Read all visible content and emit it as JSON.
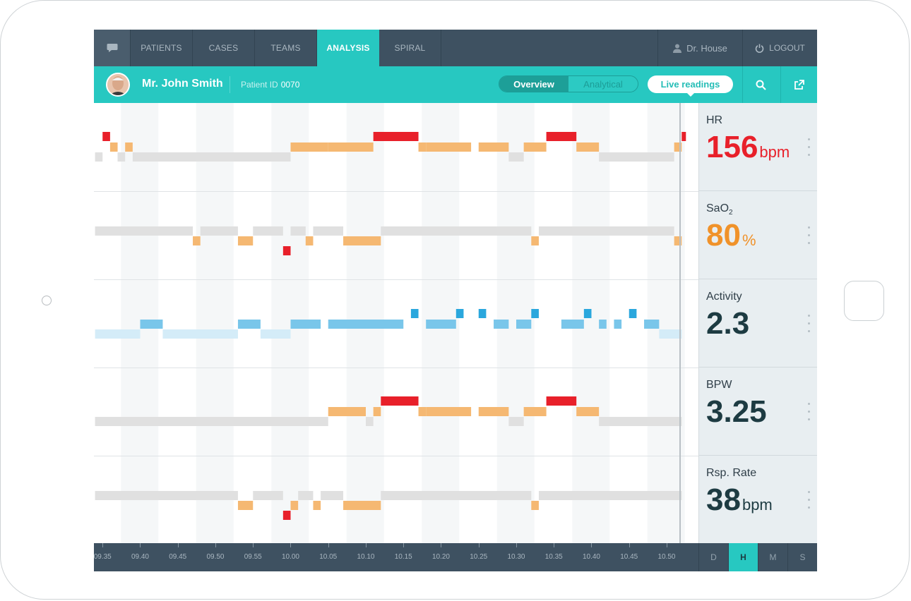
{
  "nav": {
    "items": [
      {
        "label": "PATIENTS"
      },
      {
        "label": "CASES"
      },
      {
        "label": "TEAMS"
      },
      {
        "label": "ANALYSIS",
        "active": true
      },
      {
        "label": "SPIRAL"
      }
    ],
    "user_label": "Dr. House",
    "logout_label": "LOGOUT"
  },
  "patient": {
    "name": "Mr. John Smith",
    "id_label": "Patient ID",
    "id_value": "0070"
  },
  "view_toggle": {
    "options": [
      "Overview",
      "Analytical"
    ],
    "selected": "Overview"
  },
  "live_button": "Live readings",
  "readouts": [
    {
      "label": "HR",
      "value": "156",
      "unit": "bpm",
      "color": "#e8202a"
    },
    {
      "label": "SaO",
      "sub": "2",
      "value": "80",
      "unit": "%",
      "color": "#f0922a"
    },
    {
      "label": "Activity",
      "value": "2.3",
      "unit": "",
      "color": "#1d3b42"
    },
    {
      "label": "BPW",
      "value": "3.25",
      "unit": "",
      "color": "#1d3b42"
    },
    {
      "label": "Rsp. Rate",
      "value": "38",
      "unit": "bpm",
      "color": "#1d3b42"
    }
  ],
  "time_ticks": [
    "09.35",
    "09.40",
    "09.45",
    "09.50",
    "09.55",
    "10.00",
    "10.05",
    "10.10",
    "10.15",
    "10.20",
    "10.25",
    "10.30",
    "10.35",
    "10.40",
    "10.45",
    "10.50"
  ],
  "zoom": {
    "options": [
      "D",
      "H",
      "M",
      "S"
    ],
    "selected": "H"
  },
  "colors": {
    "nav_bg": "#3e5161",
    "accent": "#27c8c1",
    "critical": "#e8202a",
    "warning": "#f5b872",
    "normal": "#e0e0e0",
    "activity_strong": "#2aa7dd",
    "activity_mid": "#79c6ea",
    "activity_light": "#d4ecf8"
  },
  "chart_data": {
    "type": "heatmap",
    "x_range": [
      "09.34",
      "10.52"
    ],
    "rows": [
      {
        "name": "HR",
        "segments": [
          {
            "start": "09.34",
            "end": "09.35",
            "level": "normal"
          },
          {
            "start": "09.35",
            "end": "09.36",
            "level": "critical"
          },
          {
            "start": "09.36",
            "end": "09.37",
            "level": "warning"
          },
          {
            "start": "09.37",
            "end": "09.38",
            "level": "normal"
          },
          {
            "start": "09.38",
            "end": "09.39",
            "level": "warning"
          },
          {
            "start": "09.39",
            "end": "10.00",
            "level": "normal"
          },
          {
            "start": "10.00",
            "end": "10.05",
            "level": "warning"
          },
          {
            "start": "10.05",
            "end": "10.10",
            "level": "warning"
          },
          {
            "start": "10.10",
            "end": "10.11",
            "level": "warning"
          },
          {
            "start": "10.11",
            "end": "10.17",
            "level": "critical"
          },
          {
            "start": "10.17",
            "end": "10.18",
            "level": "warning"
          },
          {
            "start": "10.18",
            "end": "10.24",
            "level": "warning"
          },
          {
            "start": "10.25",
            "end": "10.29",
            "level": "warning"
          },
          {
            "start": "10.29",
            "end": "10.31",
            "level": "normal"
          },
          {
            "start": "10.31",
            "end": "10.34",
            "level": "warning"
          },
          {
            "start": "10.34",
            "end": "10.38",
            "level": "critical"
          },
          {
            "start": "10.38",
            "end": "10.41",
            "level": "warning"
          },
          {
            "start": "10.41",
            "end": "10.51",
            "level": "normal"
          },
          {
            "start": "10.51",
            "end": "10.52",
            "level": "warning"
          },
          {
            "start": "10.52",
            "end": "10.52",
            "level": "critical"
          }
        ]
      },
      {
        "name": "SaO2",
        "segments": [
          {
            "start": "09.34",
            "end": "09.47",
            "level": "normal"
          },
          {
            "start": "09.47",
            "end": "09.48",
            "level": "warning"
          },
          {
            "start": "09.48",
            "end": "09.53",
            "level": "normal"
          },
          {
            "start": "09.53",
            "end": "09.55",
            "level": "warning"
          },
          {
            "start": "09.55",
            "end": "09.59",
            "level": "normal"
          },
          {
            "start": "09.59",
            "end": "10.00",
            "level": "critical"
          },
          {
            "start": "10.00",
            "end": "10.02",
            "level": "normal"
          },
          {
            "start": "10.02",
            "end": "10.03",
            "level": "warning"
          },
          {
            "start": "10.03",
            "end": "10.07",
            "level": "normal"
          },
          {
            "start": "10.07",
            "end": "10.12",
            "level": "warning"
          },
          {
            "start": "10.12",
            "end": "10.32",
            "level": "normal"
          },
          {
            "start": "10.32",
            "end": "10.33",
            "level": "warning"
          },
          {
            "start": "10.33",
            "end": "10.51",
            "level": "normal"
          },
          {
            "start": "10.51",
            "end": "10.52",
            "level": "warning"
          }
        ]
      },
      {
        "name": "Activity",
        "segments": [
          {
            "start": "09.34",
            "end": "09.40",
            "level": "light"
          },
          {
            "start": "09.40",
            "end": "09.43",
            "level": "mid"
          },
          {
            "start": "09.43",
            "end": "09.53",
            "level": "light"
          },
          {
            "start": "09.53",
            "end": "09.56",
            "level": "mid"
          },
          {
            "start": "09.56",
            "end": "10.00",
            "level": "light"
          },
          {
            "start": "10.00",
            "end": "10.04",
            "level": "mid"
          },
          {
            "start": "10.05",
            "end": "10.15",
            "level": "mid"
          },
          {
            "start": "10.16",
            "end": "10.17",
            "level": "strong"
          },
          {
            "start": "10.18",
            "end": "10.22",
            "level": "mid"
          },
          {
            "start": "10.22",
            "end": "10.23",
            "level": "strong"
          },
          {
            "start": "10.25",
            "end": "10.26",
            "level": "strong"
          },
          {
            "start": "10.27",
            "end": "10.29",
            "level": "mid"
          },
          {
            "start": "10.30",
            "end": "10.32",
            "level": "mid"
          },
          {
            "start": "10.32",
            "end": "10.33",
            "level": "strong"
          },
          {
            "start": "10.36",
            "end": "10.39",
            "level": "mid"
          },
          {
            "start": "10.39",
            "end": "10.40",
            "level": "strong"
          },
          {
            "start": "10.41",
            "end": "10.42",
            "level": "mid"
          },
          {
            "start": "10.43",
            "end": "10.44",
            "level": "mid"
          },
          {
            "start": "10.45",
            "end": "10.46",
            "level": "strong"
          },
          {
            "start": "10.47",
            "end": "10.49",
            "level": "mid"
          },
          {
            "start": "10.49",
            "end": "10.52",
            "level": "light"
          }
        ]
      },
      {
        "name": "BPW",
        "segments": [
          {
            "start": "09.34",
            "end": "10.05",
            "level": "normal"
          },
          {
            "start": "10.05",
            "end": "10.10",
            "level": "warning"
          },
          {
            "start": "10.10",
            "end": "10.11",
            "level": "normal"
          },
          {
            "start": "10.11",
            "end": "10.12",
            "level": "warning"
          },
          {
            "start": "10.12",
            "end": "10.17",
            "level": "critical"
          },
          {
            "start": "10.17",
            "end": "10.18",
            "level": "warning"
          },
          {
            "start": "10.18",
            "end": "10.24",
            "level": "warning"
          },
          {
            "start": "10.25",
            "end": "10.29",
            "level": "warning"
          },
          {
            "start": "10.29",
            "end": "10.31",
            "level": "normal"
          },
          {
            "start": "10.31",
            "end": "10.34",
            "level": "warning"
          },
          {
            "start": "10.34",
            "end": "10.38",
            "level": "critical"
          },
          {
            "start": "10.38",
            "end": "10.41",
            "level": "warning"
          },
          {
            "start": "10.41",
            "end": "10.52",
            "level": "normal"
          }
        ]
      },
      {
        "name": "Rsp. Rate",
        "segments": [
          {
            "start": "09.34",
            "end": "09.53",
            "level": "normal"
          },
          {
            "start": "09.53",
            "end": "09.55",
            "level": "warning"
          },
          {
            "start": "09.55",
            "end": "09.59",
            "level": "normal"
          },
          {
            "start": "09.59",
            "end": "10.00",
            "level": "critical"
          },
          {
            "start": "10.00",
            "end": "10.01",
            "level": "warning"
          },
          {
            "start": "10.01",
            "end": "10.03",
            "level": "normal"
          },
          {
            "start": "10.03",
            "end": "10.04",
            "level": "warning"
          },
          {
            "start": "10.04",
            "end": "10.07",
            "level": "normal"
          },
          {
            "start": "10.07",
            "end": "10.12",
            "level": "warning"
          },
          {
            "start": "10.12",
            "end": "10.32",
            "level": "normal"
          },
          {
            "start": "10.32",
            "end": "10.33",
            "level": "warning"
          },
          {
            "start": "10.33",
            "end": "10.52",
            "level": "normal"
          }
        ]
      }
    ]
  }
}
